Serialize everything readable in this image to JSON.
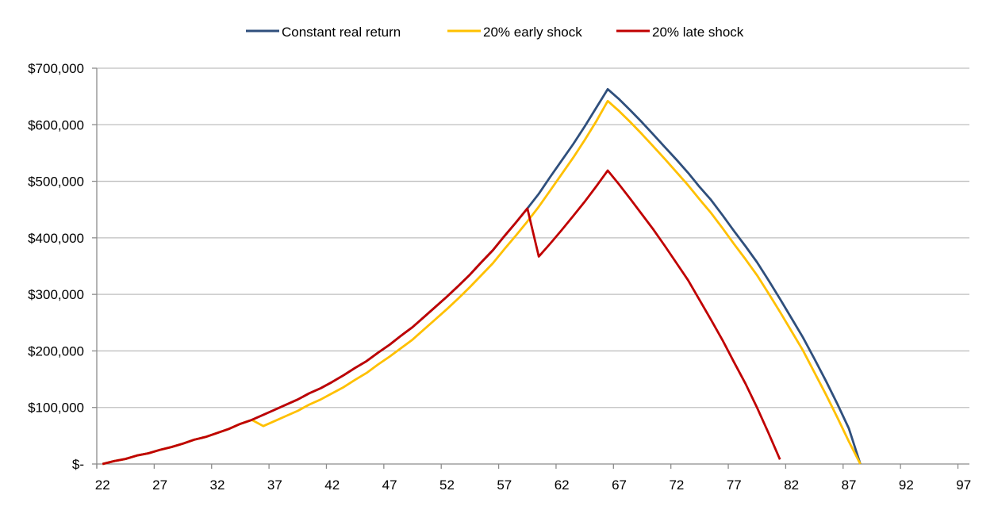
{
  "chart_data": {
    "type": "line",
    "title": "",
    "xlabel": "",
    "ylabel": "",
    "ylim": [
      0,
      700000
    ],
    "y_ticks": [
      0,
      100000,
      200000,
      300000,
      400000,
      500000,
      600000,
      700000
    ],
    "y_tick_labels": [
      "$-",
      "$100,000",
      "$200,000",
      "$300,000",
      "$400,000",
      "$500,000",
      "$600,000",
      "$700,000"
    ],
    "x_categories_range": [
      22,
      97
    ],
    "x_tick_labels": [
      "22",
      "27",
      "32",
      "37",
      "42",
      "47",
      "52",
      "57",
      "62",
      "67",
      "72",
      "77",
      "82",
      "87",
      "92",
      "97"
    ],
    "grid": "horizontal",
    "legend_position": "top",
    "series": [
      {
        "name": "Constant real return",
        "color": "#2F4F7C",
        "start_age": 22,
        "values_k": [
          0,
          5,
          9,
          15,
          19,
          25,
          30,
          36,
          43,
          48,
          55,
          62,
          71,
          78,
          87,
          96,
          105,
          114,
          125,
          134,
          145,
          157,
          170,
          182,
          197,
          211,
          227,
          242,
          260,
          278,
          296,
          315,
          335,
          357,
          378,
          403,
          427,
          452,
          478,
          508,
          537,
          566,
          597,
          630,
          663,
          645,
          625,
          604,
          582,
          560,
          538,
          515,
          490,
          467,
          440,
          412,
          385,
          357,
          325,
          292,
          258,
          224,
          186,
          147,
          106,
          63,
          0
        ]
      },
      {
        "name": "20% early shock",
        "color": "#FFC000",
        "start_age": 22,
        "values_k": [
          0,
          5,
          9,
          15,
          19,
          25,
          30,
          36,
          43,
          48,
          55,
          62,
          71,
          78,
          67,
          76,
          85,
          94,
          105,
          114,
          125,
          136,
          149,
          161,
          176,
          190,
          205,
          220,
          238,
          256,
          274,
          293,
          313,
          334,
          355,
          380,
          404,
          429,
          455,
          484,
          513,
          542,
          573,
          606,
          642,
          624,
          604,
          583,
          561,
          539,
          516,
          493,
          468,
          444,
          417,
          389,
          362,
          334,
          302,
          269,
          235,
          201,
          162,
          123,
          82,
          40,
          0
        ]
      },
      {
        "name": "20% late shock",
        "color": "#C00000",
        "start_age": 22,
        "values_k": [
          0,
          5,
          9,
          15,
          19,
          25,
          30,
          36,
          43,
          48,
          55,
          62,
          71,
          78,
          87,
          96,
          105,
          114,
          125,
          134,
          145,
          157,
          170,
          182,
          197,
          211,
          227,
          242,
          260,
          278,
          296,
          315,
          335,
          357,
          378,
          403,
          427,
          452,
          367,
          390,
          414,
          439,
          464,
          491,
          519,
          494,
          468,
          441,
          414,
          385,
          355,
          325,
          290,
          255,
          219,
          180,
          142,
          100,
          55,
          8
        ]
      }
    ]
  }
}
